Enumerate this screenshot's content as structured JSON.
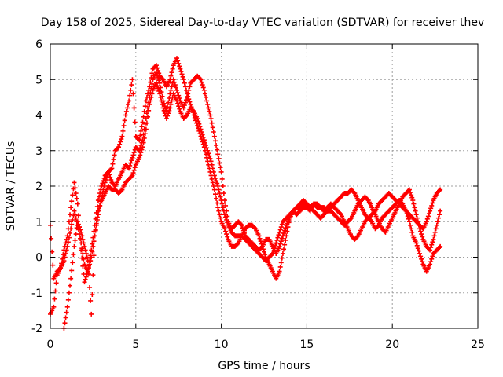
{
  "chart_data": {
    "type": "scatter",
    "title": "Day 158 of 2025, Sidereal Day-to-day VTEC variation (SDTVAR) for receiver thev",
    "xlabel": "GPS time / hours",
    "ylabel": "SDTVAR / TECUs",
    "xlim": [
      0,
      25
    ],
    "ylim": [
      -2,
      6
    ],
    "xticks": [
      "0",
      "5",
      "10",
      "15",
      "20",
      "25"
    ],
    "yticks": [
      "-2",
      "-1",
      "0",
      "1",
      "2",
      "3",
      "4",
      "5",
      "6"
    ],
    "grid": true,
    "marker": "+",
    "series": [
      {
        "name": "track-1",
        "color": "#ff0000",
        "x": [
          0.0,
          0.2,
          0.4,
          0.6,
          0.8,
          1.0,
          1.2,
          1.4,
          1.6,
          1.8,
          2.0,
          2.2,
          2.4,
          2.6,
          2.8,
          3.0,
          3.2,
          3.4,
          3.6,
          3.8,
          4.0,
          4.2,
          4.4,
          4.6,
          4.8,
          5.0,
          5.2,
          5.4,
          5.6,
          5.8,
          6.0,
          6.2,
          6.4,
          6.6,
          6.8,
          7.0,
          7.2,
          7.4,
          7.6,
          7.8,
          8.0,
          8.2,
          8.4,
          8.6,
          8.8,
          9.0,
          9.2,
          9.4,
          9.6,
          9.8,
          10.0,
          10.2,
          10.4,
          10.6,
          10.8,
          11.0,
          11.2,
          11.4,
          11.6,
          11.8,
          12.0,
          12.2,
          12.4,
          12.6,
          12.8,
          13.0,
          13.2,
          13.4,
          13.6,
          13.8,
          14.0,
          14.2,
          14.4,
          14.6,
          14.8,
          15.0,
          15.2,
          15.4,
          15.6,
          15.8,
          16.0,
          16.2,
          16.4,
          16.6,
          16.8,
          17.0,
          17.2,
          17.4,
          17.6,
          17.8,
          18.0,
          18.2,
          18.4,
          18.6,
          18.8,
          19.0,
          19.2,
          19.4,
          19.6,
          19.8,
          20.0,
          20.2,
          20.4,
          20.6,
          20.8,
          21.0,
          21.2,
          21.4,
          21.6,
          21.8,
          22.0,
          22.2,
          22.4,
          22.6,
          22.8
        ],
        "y": [
          -1.6,
          -1.4,
          -0.5,
          -0.3,
          0.2,
          0.6,
          1.4,
          2.1,
          1.5,
          0.2,
          -0.7,
          -0.4,
          0.2,
          0.9,
          1.6,
          2.0,
          2.3,
          2.4,
          2.1,
          2.0,
          2.2,
          2.4,
          2.6,
          2.5,
          2.8,
          3.1,
          3.0,
          3.3,
          3.9,
          4.5,
          5.0,
          5.2,
          4.9,
          4.4,
          4.1,
          4.6,
          5.0,
          4.7,
          4.4,
          4.2,
          4.5,
          4.9,
          5.0,
          5.1,
          5.0,
          4.7,
          4.3,
          3.9,
          3.4,
          2.9,
          2.4,
          1.6,
          1.0,
          0.8,
          0.9,
          1.0,
          0.9,
          0.6,
          0.5,
          0.4,
          0.3,
          0.2,
          0.3,
          0.5,
          0.5,
          0.3,
          0.1,
          0.3,
          0.6,
          0.9,
          1.1,
          1.3,
          1.2,
          1.3,
          1.4,
          1.4,
          1.3,
          1.5,
          1.4,
          1.4,
          1.3,
          1.4,
          1.5,
          1.4,
          1.3,
          1.2,
          1.0,
          0.8,
          0.6,
          0.5,
          0.6,
          0.8,
          1.0,
          1.1,
          1.0,
          0.8,
          0.9,
          1.1,
          1.2,
          1.3,
          1.4,
          1.5,
          1.6,
          1.5,
          1.3,
          1.0,
          0.6,
          0.4,
          0.1,
          -0.2,
          -0.4,
          -0.2,
          0.1,
          0.2,
          0.3
        ]
      },
      {
        "name": "track-2",
        "color": "#ff0000",
        "x": [
          0.0,
          0.2,
          0.4,
          0.6,
          0.8,
          1.0,
          1.2,
          1.4,
          1.6,
          1.8,
          2.0,
          2.2,
          2.4,
          2.6,
          2.8,
          3.0,
          3.2,
          3.4,
          3.6,
          3.8,
          4.0,
          4.2,
          4.4,
          4.6,
          4.8,
          5.0,
          5.2,
          5.4,
          5.6,
          5.8,
          6.0,
          6.2,
          6.4,
          6.6,
          6.8,
          7.0,
          7.2,
          7.4,
          7.6,
          7.8,
          8.0,
          8.2,
          8.4,
          8.6,
          8.8,
          9.0,
          9.2,
          9.4,
          9.6,
          9.8,
          10.0,
          10.2,
          10.4,
          10.6,
          10.8,
          11.0,
          11.2,
          11.4,
          11.6,
          11.8,
          12.0,
          12.2,
          12.4,
          12.6,
          12.8,
          13.0,
          13.2,
          13.4,
          13.6,
          13.8,
          14.0,
          14.2,
          14.4,
          14.6,
          14.8,
          15.0,
          15.2,
          15.4,
          15.6,
          15.8,
          16.0,
          16.2,
          16.4,
          16.6,
          16.8,
          17.0,
          17.2,
          17.4,
          17.6,
          17.8,
          18.0,
          18.2,
          18.4,
          18.6,
          18.8,
          19.0,
          19.2,
          19.4,
          19.6,
          19.8,
          20.0,
          20.2,
          20.4,
          20.6,
          20.8,
          21.0,
          21.2,
          21.4,
          21.6,
          21.8,
          22.0,
          22.2,
          22.4,
          22.6,
          22.8
        ],
        "y": [
          0.9,
          -0.6,
          -0.4,
          -0.3,
          -0.1,
          0.3,
          0.8,
          1.3,
          0.9,
          0.4,
          -0.2,
          -0.4,
          0.0,
          0.6,
          1.3,
          1.6,
          1.8,
          2.0,
          1.9,
          1.9,
          1.8,
          1.9,
          2.1,
          2.2,
          2.3,
          2.6,
          2.8,
          3.1,
          3.6,
          4.3,
          4.7,
          4.9,
          4.6,
          4.2,
          3.9,
          4.2,
          4.6,
          4.4,
          4.1,
          3.9,
          4.0,
          4.2,
          4.1,
          3.9,
          3.6,
          3.3,
          3.0,
          2.7,
          2.3,
          2.0,
          1.6,
          1.2,
          0.9,
          0.7,
          0.6,
          0.6,
          0.6,
          0.5,
          0.4,
          0.3,
          0.2,
          0.1,
          0.0,
          -0.1,
          0.0,
          0.1,
          0.4,
          0.7,
          1.0,
          1.1,
          1.2,
          1.3,
          1.4,
          1.4,
          1.5,
          1.5,
          1.4,
          1.5,
          1.5,
          1.4,
          1.4,
          1.3,
          1.3,
          1.2,
          1.1,
          1.0,
          0.9,
          1.0,
          1.1,
          1.3,
          1.5,
          1.6,
          1.7,
          1.6,
          1.4,
          1.2,
          1.0,
          0.8,
          0.7,
          0.9,
          1.1,
          1.3,
          1.5,
          1.7,
          1.8,
          1.9,
          1.6,
          1.2,
          0.8,
          0.5,
          0.3,
          0.2,
          0.5,
          0.9,
          1.3
        ]
      },
      {
        "name": "track-3",
        "color": "#ff0000",
        "x": [
          0.8,
          1.0,
          1.2,
          1.4,
          1.6,
          1.8,
          2.0,
          2.2,
          2.4,
          2.6,
          2.8,
          3.0,
          3.2,
          3.4,
          3.6,
          3.8,
          4.0,
          4.2,
          4.4,
          4.6,
          4.8,
          5.0,
          5.2,
          5.4,
          5.6,
          5.8,
          6.0,
          6.2,
          6.4,
          6.6,
          6.8,
          7.0,
          7.2,
          7.4,
          7.6,
          7.8,
          8.0,
          8.2,
          8.4,
          8.6,
          8.8,
          9.0,
          9.2,
          9.4,
          9.6,
          9.8,
          10.0,
          10.2,
          10.4,
          10.6,
          10.8,
          11.0,
          11.2,
          11.4,
          11.6,
          11.8,
          12.0,
          12.2,
          12.4,
          12.6,
          12.8,
          13.0,
          13.2,
          13.4,
          13.6,
          13.8,
          14.0,
          14.2,
          14.4,
          14.6,
          14.8,
          15.0,
          15.2,
          15.4,
          15.6,
          15.8,
          16.0,
          16.2,
          16.4,
          16.6,
          16.8,
          17.0,
          17.2,
          17.4,
          17.6,
          17.8,
          18.0,
          18.2,
          18.4,
          18.6,
          18.8,
          19.0,
          19.2,
          19.4,
          19.6,
          19.8,
          20.0,
          20.2,
          20.4,
          20.6,
          20.8,
          21.0,
          21.2,
          21.4,
          21.6,
          21.8,
          22.0,
          22.2,
          22.4,
          22.6,
          22.8
        ],
        "y": [
          -2.0,
          -1.4,
          -0.6,
          0.3,
          1.0,
          0.7,
          0.3,
          -0.1,
          -1.6,
          0.6,
          1.2,
          1.7,
          2.1,
          2.4,
          2.5,
          3.0,
          3.1,
          3.4,
          4.0,
          4.4,
          5.0,
          3.4,
          3.3,
          3.8,
          4.4,
          4.8,
          5.3,
          5.4,
          5.1,
          5.0,
          4.8,
          5.0,
          5.4,
          5.6,
          5.3,
          5.0,
          4.6,
          4.3,
          4.0,
          3.7,
          3.4,
          3.1,
          2.7,
          2.3,
          1.9,
          1.4,
          1.0,
          0.8,
          0.5,
          0.3,
          0.3,
          0.4,
          0.6,
          0.8,
          0.9,
          0.9,
          0.8,
          0.6,
          0.3,
          0.0,
          -0.2,
          -0.4,
          -0.6,
          -0.4,
          0.1,
          0.6,
          1.1,
          1.3,
          1.4,
          1.5,
          1.6,
          1.5,
          1.4,
          1.3,
          1.2,
          1.1,
          1.2,
          1.3,
          1.4,
          1.5,
          1.6,
          1.7,
          1.8,
          1.8,
          1.9,
          1.8,
          1.6,
          1.4,
          1.2,
          1.1,
          1.2,
          1.3,
          1.5,
          1.6,
          1.7,
          1.8,
          1.7,
          1.6,
          1.5,
          1.4,
          1.3,
          1.2,
          1.1,
          1.0,
          0.9,
          0.8,
          1.0,
          1.3,
          1.6,
          1.8,
          1.9
        ]
      }
    ]
  }
}
